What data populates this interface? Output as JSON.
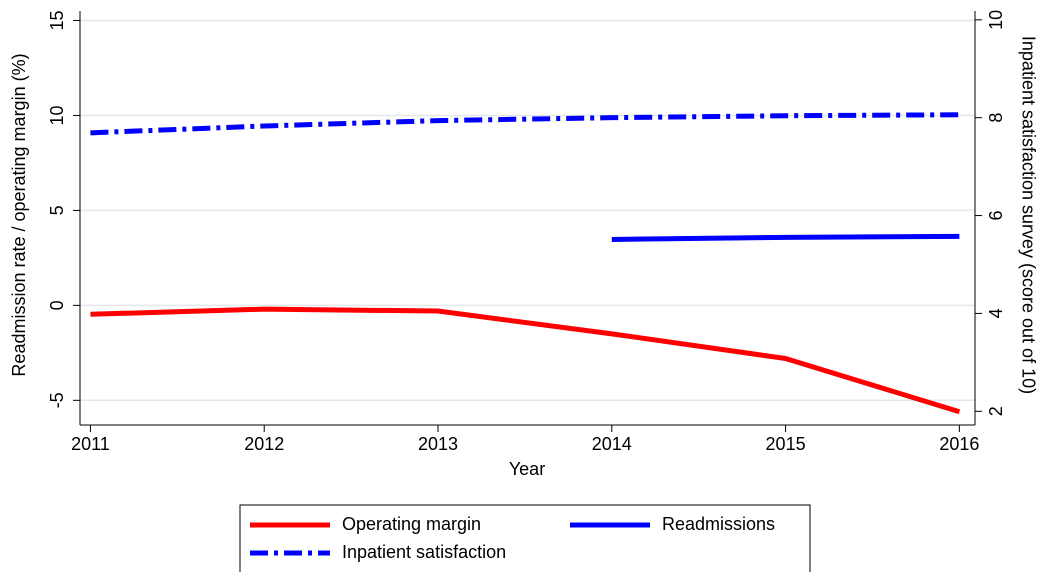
{
  "chart_data": {
    "type": "line",
    "x_label": "Year",
    "y_label": "Readmission rate / operating margin (%)",
    "y2_label": "Inpatient satisfaction survey (score out of 10)",
    "x": [
      2011,
      2012,
      2013,
      2014,
      2015,
      2016
    ],
    "xlim": [
      2010.94,
      2016.09
    ],
    "xticks": [
      2011,
      2012,
      2013,
      2014,
      2015,
      2016
    ],
    "ylim": [
      -6.3,
      15.5
    ],
    "yticks": [
      -5,
      0,
      5,
      10,
      15
    ],
    "y2lim": [
      1.72,
      10.18
    ],
    "y2ticks": [
      2,
      4,
      6,
      8,
      10
    ],
    "grid": true,
    "legend": "bottom",
    "series": [
      {
        "name": "Operating margin",
        "color": "#ff0000",
        "style": "solid",
        "values": [
          -0.47,
          -0.2,
          -0.3,
          -1.5,
          -2.8,
          -5.6
        ]
      },
      {
        "name": "Readmissions",
        "color": "#0000ff",
        "style": "solid",
        "values": [
          null,
          null,
          null,
          3.47,
          3.58,
          3.63
        ]
      },
      {
        "name": "Inpatient satisfaction",
        "color": "#0000ff",
        "style": "dashdot",
        "axis": "y2",
        "values": [
          7.69,
          7.83,
          7.94,
          8.0,
          8.04,
          8.06
        ]
      }
    ]
  }
}
